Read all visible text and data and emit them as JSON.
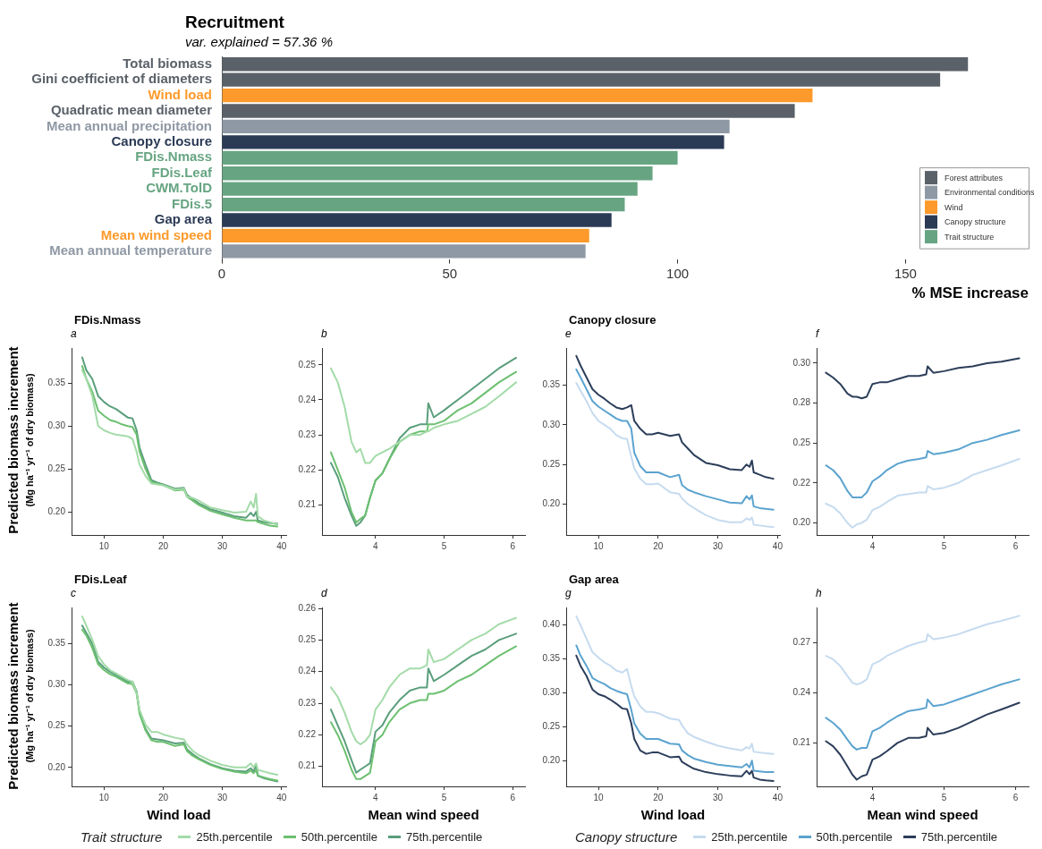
{
  "chart_data": [
    {
      "type": "bar",
      "title": "Recruitment",
      "subtitle": "var. explained = 57.36 %",
      "orientation": "horizontal",
      "xlabel": "% MSE increase",
      "xlim": [
        0,
        177
      ],
      "xticks": [
        0,
        50,
        100,
        150
      ],
      "legend": "bottom right",
      "categories": [
        "Total biomass",
        "Gini coefficient of diameters",
        "Wind load",
        "Quadratic mean diameter",
        "Mean annual precipitation",
        "Canopy closure",
        "FDis.Nmass",
        "FDis.Leaf",
        "CWM.TolD",
        "FDis.5",
        "Gap area",
        "Mean wind speed",
        "Mean annual temperature"
      ],
      "series": [
        {
          "name": "Forest attributes",
          "color": "#5b6169",
          "values": [
            163.7,
            157.6,
            null,
            125.7,
            null,
            null,
            null,
            null,
            null,
            null,
            null,
            null,
            null
          ]
        },
        {
          "name": "Environmental conditions",
          "color": "#8f99a5",
          "values": [
            null,
            null,
            null,
            null,
            111.4,
            null,
            null,
            null,
            null,
            null,
            null,
            null,
            79.8
          ]
        },
        {
          "name": "Wind",
          "color": "#fd9a2b",
          "values": [
            null,
            null,
            129.6,
            null,
            null,
            null,
            null,
            null,
            null,
            null,
            null,
            80.6,
            null
          ]
        },
        {
          "name": "Canopy structure",
          "color": "#2b3a55",
          "values": [
            null,
            null,
            null,
            null,
            null,
            110.2,
            null,
            null,
            null,
            null,
            85.5,
            null,
            null
          ]
        },
        {
          "name": "Trait structure",
          "color": "#67a582",
          "values": [
            null,
            null,
            null,
            null,
            null,
            null,
            100,
            94.5,
            91.2,
            88.4,
            null,
            null,
            null
          ]
        }
      ]
    },
    {
      "type": "line",
      "title": "FDis.Nmass",
      "subtitle": "a",
      "ylabel": "Predicted biomass increment\n(Mg ha⁻¹ yr⁻¹ of dry biomass)",
      "xlim": [
        4.5,
        40.8
      ],
      "xticks": [
        10,
        20,
        30,
        40
      ],
      "ylim": [
        0.173,
        0.391
      ],
      "yticks": [
        {
          "value": 0.2,
          "label": "0.20"
        },
        0.25,
        {
          "value": 0.3,
          "label": "0.30"
        },
        0.35
      ],
      "x": [
        6.3,
        7,
        8,
        9,
        10,
        11,
        12,
        13,
        14,
        14.8,
        15.5,
        16,
        17,
        18,
        19,
        20,
        22,
        23.5,
        24,
        25,
        26,
        28,
        30,
        32,
        34,
        34.8,
        35.3,
        35.7,
        36,
        37,
        38,
        39.3
      ],
      "series": [
        {
          "color": "#a3dba8",
          "values": [
            0.365,
            0.355,
            0.335,
            0.3,
            0.295,
            0.292,
            0.29,
            0.289,
            0.288,
            0.285,
            0.27,
            0.255,
            0.242,
            0.233,
            0.232,
            0.231,
            0.226,
            0.227,
            0.218,
            0.216,
            0.213,
            0.205,
            0.202,
            0.199,
            0.2,
            0.212,
            0.205,
            0.221,
            0.195,
            0.19,
            0.188,
            0.185
          ]
        },
        {
          "color": "#6cc070",
          "values": [
            0.37,
            0.355,
            0.34,
            0.318,
            0.312,
            0.307,
            0.305,
            0.302,
            0.3,
            0.299,
            0.29,
            0.27,
            0.25,
            0.235,
            0.233,
            0.231,
            0.225,
            0.226,
            0.218,
            0.213,
            0.208,
            0.201,
            0.197,
            0.193,
            0.19,
            0.19,
            0.19,
            0.19,
            0.188,
            0.186,
            0.184,
            0.183
          ]
        },
        {
          "color": "#5a9e7c",
          "values": [
            0.38,
            0.365,
            0.355,
            0.335,
            0.328,
            0.323,
            0.32,
            0.315,
            0.31,
            0.309,
            0.295,
            0.275,
            0.255,
            0.237,
            0.234,
            0.232,
            0.227,
            0.228,
            0.22,
            0.215,
            0.21,
            0.203,
            0.199,
            0.195,
            0.193,
            0.199,
            0.195,
            0.2,
            0.19,
            0.188,
            0.187,
            0.186
          ]
        }
      ]
    },
    {
      "type": "line",
      "subtitle": "b",
      "xlim": [
        3.22,
        6.18
      ],
      "xticks": [
        4,
        5,
        6
      ],
      "ylim": [
        0.2014,
        0.2548
      ],
      "yticks": [
        0.21,
        0.22,
        0.23,
        0.24,
        0.25
      ],
      "x": [
        3.35,
        3.45,
        3.55,
        3.65,
        3.72,
        3.78,
        3.85,
        3.92,
        4.0,
        4.1,
        4.2,
        4.35,
        4.5,
        4.65,
        4.75,
        4.77,
        4.85,
        5.0,
        5.2,
        5.4,
        5.6,
        5.8,
        6.05
      ],
      "series": [
        {
          "color": "#a3dba8",
          "values": [
            0.249,
            0.245,
            0.238,
            0.228,
            0.225,
            0.226,
            0.222,
            0.222,
            0.224,
            0.225,
            0.226,
            0.228,
            0.23,
            0.23,
            0.231,
            0.231,
            0.232,
            0.233,
            0.234,
            0.236,
            0.238,
            0.241,
            0.245
          ]
        },
        {
          "color": "#6cc070",
          "values": [
            0.225,
            0.22,
            0.215,
            0.208,
            0.205,
            0.206,
            0.207,
            0.212,
            0.217,
            0.219,
            0.223,
            0.228,
            0.23,
            0.231,
            0.231,
            0.233,
            0.233,
            0.234,
            0.237,
            0.239,
            0.242,
            0.245,
            0.248
          ]
        },
        {
          "color": "#5a9e7c",
          "values": [
            0.222,
            0.218,
            0.212,
            0.207,
            0.204,
            0.205,
            0.207,
            0.212,
            0.217,
            0.219,
            0.223,
            0.229,
            0.232,
            0.233,
            0.233,
            0.239,
            0.235,
            0.237,
            0.24,
            0.243,
            0.246,
            0.249,
            0.252
          ]
        }
      ]
    },
    {
      "type": "line",
      "title": "Canopy closure",
      "subtitle": "e",
      "xlim": [
        4.6,
        40.4
      ],
      "xticks": [
        10,
        20,
        30,
        40
      ],
      "ylim": [
        0.161,
        0.397
      ],
      "yticks": [
        {
          "value": 0.2,
          "label": "0.20"
        },
        0.25,
        {
          "value": 0.3,
          "label": "0.30"
        },
        0.35
      ],
      "x": [
        6.3,
        7,
        8,
        9,
        10,
        11,
        12,
        13,
        14,
        14.8,
        15.5,
        16,
        17,
        18,
        19,
        20,
        22,
        23.5,
        24,
        25,
        26,
        28,
        30,
        32,
        34,
        34.8,
        35.3,
        35.7,
        36,
        37,
        38,
        39.3
      ],
      "series": [
        {
          "color": "#c6dbef",
          "values": [
            0.353,
            0.343,
            0.33,
            0.315,
            0.305,
            0.3,
            0.295,
            0.287,
            0.283,
            0.282,
            0.26,
            0.245,
            0.232,
            0.225,
            0.225,
            0.226,
            0.215,
            0.213,
            0.207,
            0.2,
            0.195,
            0.186,
            0.18,
            0.177,
            0.177,
            0.182,
            0.18,
            0.183,
            0.174,
            0.173,
            0.172,
            0.171
          ]
        },
        {
          "color": "#5ba3cf",
          "values": [
            0.37,
            0.36,
            0.345,
            0.33,
            0.323,
            0.318,
            0.313,
            0.308,
            0.305,
            0.305,
            0.295,
            0.265,
            0.248,
            0.24,
            0.24,
            0.24,
            0.234,
            0.237,
            0.224,
            0.218,
            0.215,
            0.21,
            0.206,
            0.202,
            0.201,
            0.21,
            0.206,
            0.211,
            0.197,
            0.195,
            0.194,
            0.193
          ]
        },
        {
          "color": "#2c3e5a",
          "values": [
            0.387,
            0.375,
            0.36,
            0.345,
            0.338,
            0.333,
            0.327,
            0.322,
            0.32,
            0.322,
            0.325,
            0.305,
            0.295,
            0.288,
            0.288,
            0.29,
            0.286,
            0.288,
            0.278,
            0.27,
            0.262,
            0.252,
            0.249,
            0.244,
            0.243,
            0.25,
            0.247,
            0.255,
            0.24,
            0.237,
            0.234,
            0.232
          ]
        }
      ]
    },
    {
      "type": "line",
      "subtitle": "f",
      "xlim": [
        3.22,
        6.18
      ],
      "xticks": [
        4,
        5,
        6
      ],
      "ylim": [
        0.1924,
        0.3095
      ],
      "yticks": [
        {
          "value": 0.2,
          "label": "0.20"
        },
        {
          "value": 0.225,
          "label": "0.22"
        },
        {
          "value": 0.25,
          "label": "0.25"
        },
        {
          "value": 0.275,
          "label": "0.28"
        },
        {
          "value": 0.3,
          "label": "0.30"
        }
      ],
      "x": [
        3.35,
        3.45,
        3.55,
        3.65,
        3.72,
        3.78,
        3.85,
        3.92,
        4.0,
        4.1,
        4.2,
        4.35,
        4.5,
        4.65,
        4.75,
        4.77,
        4.85,
        5.0,
        5.2,
        5.4,
        5.6,
        5.8,
        6.05
      ],
      "series": [
        {
          "color": "#c6dbef",
          "values": [
            0.212,
            0.21,
            0.206,
            0.2,
            0.197,
            0.199,
            0.2,
            0.202,
            0.208,
            0.21,
            0.213,
            0.217,
            0.218,
            0.219,
            0.219,
            0.223,
            0.221,
            0.222,
            0.225,
            0.23,
            0.233,
            0.236,
            0.24
          ]
        },
        {
          "color": "#5ba3cf",
          "values": [
            0.236,
            0.233,
            0.228,
            0.22,
            0.216,
            0.216,
            0.216,
            0.219,
            0.226,
            0.229,
            0.233,
            0.237,
            0.239,
            0.24,
            0.241,
            0.245,
            0.243,
            0.244,
            0.246,
            0.25,
            0.252,
            0.255,
            0.258
          ]
        },
        {
          "color": "#2c3e5a",
          "values": [
            0.294,
            0.291,
            0.287,
            0.281,
            0.279,
            0.279,
            0.278,
            0.279,
            0.287,
            0.288,
            0.288,
            0.29,
            0.292,
            0.292,
            0.293,
            0.298,
            0.294,
            0.295,
            0.297,
            0.298,
            0.3,
            0.301,
            0.303
          ]
        }
      ]
    },
    {
      "type": "line",
      "title": "FDis.Leaf",
      "subtitle": "c",
      "xlabel": "Wind load",
      "ylabel": "Predicted biomass increment\n(Mg ha⁻¹ yr⁻¹ of dry biomass)",
      "legend": "bottom",
      "legend_title": "Trait structure",
      "xlim": [
        4.5,
        40.8
      ],
      "xticks": [
        10,
        20,
        30,
        40
      ],
      "ylim": [
        0.177,
        0.394
      ],
      "yticks": [
        {
          "value": 0.2,
          "label": "0.20"
        },
        0.25,
        {
          "value": 0.3,
          "label": "0.30"
        },
        0.35
      ],
      "x": [
        6.3,
        7,
        8,
        9,
        10,
        11,
        12,
        13,
        14,
        14.8,
        15.5,
        16,
        17,
        18,
        19,
        20,
        22,
        23.5,
        24,
        25,
        26,
        28,
        30,
        32,
        34,
        34.8,
        35.3,
        35.7,
        36,
        37,
        38,
        39.3
      ],
      "series": [
        {
          "name": "25th.percentile",
          "color": "#a3dba8",
          "values": [
            0.383,
            0.372,
            0.355,
            0.335,
            0.325,
            0.318,
            0.314,
            0.31,
            0.306,
            0.304,
            0.29,
            0.27,
            0.252,
            0.243,
            0.243,
            0.24,
            0.236,
            0.234,
            0.228,
            0.22,
            0.215,
            0.208,
            0.203,
            0.2,
            0.2,
            0.205,
            0.2,
            0.205,
            0.197,
            0.195,
            0.193,
            0.191
          ]
        },
        {
          "name": "50th.percentile",
          "color": "#6cc070",
          "values": [
            0.367,
            0.36,
            0.345,
            0.325,
            0.318,
            0.313,
            0.31,
            0.306,
            0.302,
            0.301,
            0.29,
            0.265,
            0.245,
            0.233,
            0.231,
            0.231,
            0.226,
            0.228,
            0.22,
            0.214,
            0.21,
            0.203,
            0.198,
            0.195,
            0.193,
            0.196,
            0.193,
            0.197,
            0.19,
            0.188,
            0.186,
            0.184
          ]
        },
        {
          "name": "75th.percentile",
          "color": "#5a9e7c",
          "values": [
            0.372,
            0.363,
            0.35,
            0.328,
            0.321,
            0.316,
            0.312,
            0.308,
            0.304,
            0.304,
            0.292,
            0.268,
            0.247,
            0.235,
            0.234,
            0.233,
            0.229,
            0.23,
            0.222,
            0.216,
            0.211,
            0.204,
            0.199,
            0.196,
            0.195,
            0.199,
            0.195,
            0.203,
            0.19,
            0.187,
            0.185,
            0.183
          ]
        }
      ]
    },
    {
      "type": "line",
      "subtitle": "d",
      "xlabel": "Mean wind speed",
      "xlim": [
        3.22,
        6.18
      ],
      "xticks": [
        4,
        5,
        6
      ],
      "ylim": [
        0.2037,
        0.2603
      ],
      "yticks": [
        0.21,
        0.22,
        0.23,
        0.24,
        0.25,
        0.26
      ],
      "x": [
        3.35,
        3.45,
        3.55,
        3.65,
        3.72,
        3.78,
        3.85,
        3.92,
        4.0,
        4.1,
        4.2,
        4.35,
        4.5,
        4.65,
        4.75,
        4.77,
        4.85,
        5.0,
        5.2,
        5.4,
        5.6,
        5.8,
        6.05
      ],
      "series": [
        {
          "color": "#a3dba8",
          "values": [
            0.235,
            0.232,
            0.227,
            0.221,
            0.218,
            0.217,
            0.218,
            0.22,
            0.228,
            0.231,
            0.235,
            0.239,
            0.241,
            0.241,
            0.242,
            0.247,
            0.243,
            0.244,
            0.247,
            0.25,
            0.252,
            0.255,
            0.257
          ]
        },
        {
          "color": "#6cc070",
          "values": [
            0.224,
            0.22,
            0.215,
            0.209,
            0.206,
            0.206,
            0.207,
            0.208,
            0.218,
            0.22,
            0.224,
            0.228,
            0.23,
            0.231,
            0.231,
            0.233,
            0.233,
            0.234,
            0.237,
            0.239,
            0.242,
            0.245,
            0.248
          ]
        },
        {
          "color": "#5a9e7c",
          "values": [
            0.228,
            0.223,
            0.218,
            0.212,
            0.208,
            0.209,
            0.21,
            0.211,
            0.221,
            0.223,
            0.227,
            0.231,
            0.234,
            0.235,
            0.235,
            0.241,
            0.237,
            0.239,
            0.242,
            0.245,
            0.247,
            0.25,
            0.252
          ]
        }
      ]
    },
    {
      "type": "line",
      "title": "Gap area",
      "subtitle": "g",
      "xlabel": "Wind load",
      "legend": "bottom",
      "legend_title": "Canopy structure",
      "xlim": [
        4.6,
        40.4
      ],
      "xticks": [
        10,
        20,
        30,
        40
      ],
      "ylim": [
        0.162,
        0.426
      ],
      "yticks": [
        {
          "value": 0.2,
          "label": "0.20"
        },
        0.25,
        {
          "value": 0.3,
          "label": "0.30"
        },
        0.35,
        {
          "value": 0.4,
          "label": "0.40"
        }
      ],
      "x": [
        6.3,
        7,
        8,
        9,
        10,
        11,
        12,
        13,
        14,
        14.8,
        15.5,
        16,
        17,
        18,
        19,
        20,
        22,
        23.5,
        24,
        25,
        26,
        28,
        30,
        32,
        34,
        34.8,
        35.3,
        35.7,
        36,
        37,
        38,
        39.3
      ],
      "series": [
        {
          "name": "25th.percentile",
          "color": "#c6dbef",
          "values": [
            0.413,
            0.4,
            0.38,
            0.36,
            0.352,
            0.345,
            0.34,
            0.333,
            0.33,
            0.335,
            0.31,
            0.295,
            0.28,
            0.272,
            0.272,
            0.27,
            0.262,
            0.26,
            0.252,
            0.24,
            0.235,
            0.228,
            0.222,
            0.218,
            0.215,
            0.22,
            0.218,
            0.225,
            0.213,
            0.212,
            0.211,
            0.21
          ]
        },
        {
          "name": "50th.percentile",
          "color": "#5ba3cf",
          "values": [
            0.37,
            0.355,
            0.34,
            0.322,
            0.317,
            0.313,
            0.307,
            0.303,
            0.3,
            0.298,
            0.275,
            0.255,
            0.24,
            0.232,
            0.232,
            0.232,
            0.225,
            0.224,
            0.215,
            0.208,
            0.203,
            0.198,
            0.194,
            0.192,
            0.19,
            0.195,
            0.19,
            0.2,
            0.185,
            0.184,
            0.183,
            0.183
          ]
        },
        {
          "name": "75th.percentile",
          "color": "#2c3e5a",
          "values": [
            0.355,
            0.34,
            0.325,
            0.305,
            0.298,
            0.295,
            0.29,
            0.284,
            0.277,
            0.276,
            0.255,
            0.232,
            0.215,
            0.21,
            0.212,
            0.212,
            0.205,
            0.206,
            0.198,
            0.193,
            0.188,
            0.183,
            0.18,
            0.178,
            0.177,
            0.185,
            0.18,
            0.185,
            0.175,
            0.172,
            0.171,
            0.17
          ]
        }
      ]
    },
    {
      "type": "line",
      "subtitle": "h",
      "xlabel": "Mean wind speed",
      "xlim": [
        3.22,
        6.18
      ],
      "xticks": [
        4,
        5,
        6
      ],
      "ylim": [
        0.184,
        0.291
      ],
      "yticks": [
        0.21,
        0.24,
        0.27
      ],
      "x": [
        3.35,
        3.45,
        3.55,
        3.65,
        3.72,
        3.78,
        3.85,
        3.92,
        4.0,
        4.1,
        4.2,
        4.35,
        4.5,
        4.65,
        4.75,
        4.77,
        4.85,
        5.0,
        5.2,
        5.4,
        5.6,
        5.8,
        6.05
      ],
      "series": [
        {
          "color": "#c6dbef",
          "values": [
            0.262,
            0.26,
            0.256,
            0.25,
            0.246,
            0.245,
            0.246,
            0.248,
            0.257,
            0.259,
            0.262,
            0.265,
            0.268,
            0.27,
            0.271,
            0.275,
            0.272,
            0.273,
            0.275,
            0.278,
            0.281,
            0.283,
            0.286
          ]
        },
        {
          "color": "#5ba3cf",
          "values": [
            0.225,
            0.222,
            0.218,
            0.212,
            0.208,
            0.206,
            0.207,
            0.207,
            0.217,
            0.219,
            0.222,
            0.226,
            0.229,
            0.23,
            0.231,
            0.236,
            0.232,
            0.233,
            0.236,
            0.239,
            0.242,
            0.245,
            0.248
          ]
        },
        {
          "color": "#2c3e5a",
          "values": [
            0.211,
            0.208,
            0.203,
            0.196,
            0.191,
            0.188,
            0.19,
            0.191,
            0.2,
            0.202,
            0.205,
            0.21,
            0.213,
            0.213,
            0.214,
            0.219,
            0.215,
            0.216,
            0.219,
            0.223,
            0.227,
            0.23,
            0.234
          ]
        }
      ]
    }
  ]
}
